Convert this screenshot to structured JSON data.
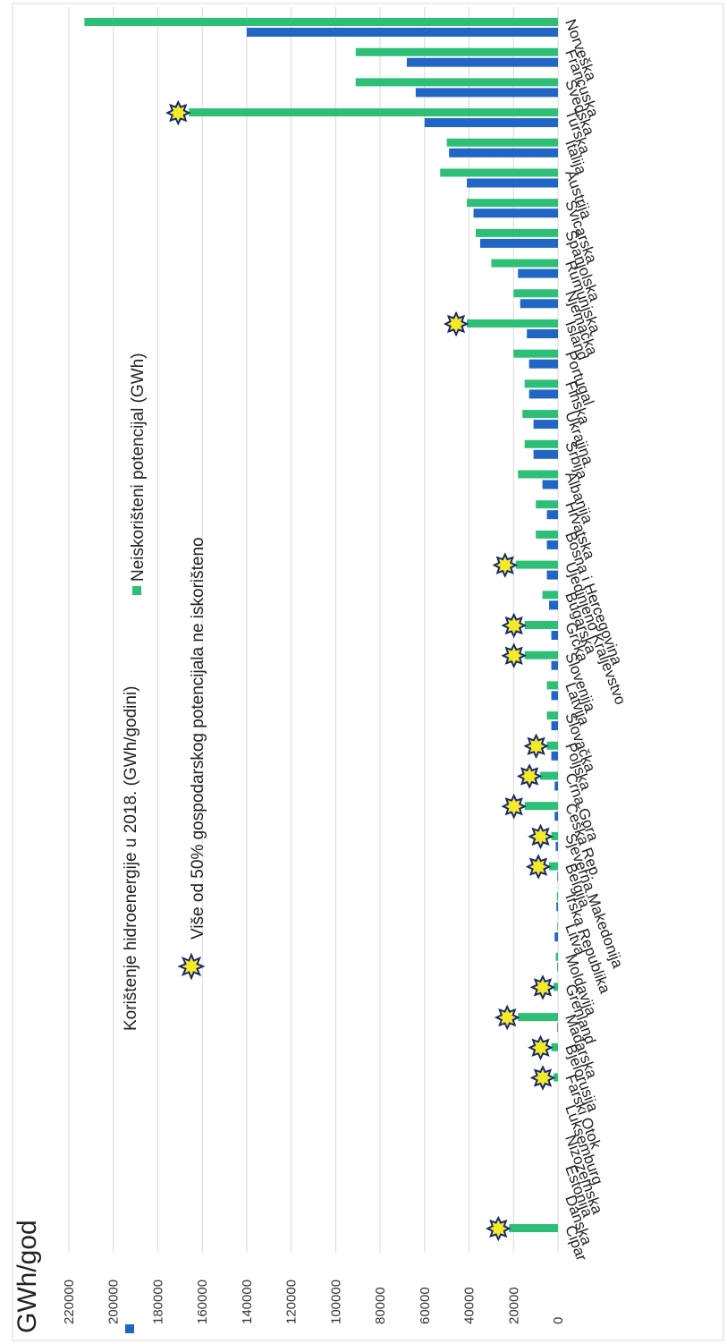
{
  "chart_data": {
    "type": "bar",
    "orientation": "rotated-90",
    "unit_label": "GWh/god",
    "ylim": [
      0,
      220000
    ],
    "yticks": [
      "0",
      "20000",
      "40000",
      "60000",
      "80000",
      "100000",
      "120000",
      "140000",
      "160000",
      "180000",
      "200000",
      "220000"
    ],
    "grid": true,
    "legend_position": "top",
    "categories": [
      "Norveška",
      "Francuska",
      "Švedska",
      "Turska",
      "Italija",
      "Austrija",
      "Švicarska",
      "Španjolska",
      "Rumunjska",
      "Njemačka",
      "Island",
      "Portugal",
      "Finska",
      "Ukrajina",
      "Srbija",
      "Albanija",
      "Hrvatska",
      "Bosna i Hercegovina",
      "Ujedinjeno Kraljevstvo",
      "Bugarska",
      "Grčka",
      "Slovenija",
      "Latvija",
      "Slovačka",
      "Poljska",
      "Crna Gora",
      "Češka Rep.",
      "Sjeverna Makedonija",
      "Belgija",
      "Irska Republika",
      "Litva",
      "Moldavija",
      "Grenland",
      "Mađarska",
      "Bjelorusija",
      "Farski Otok",
      "Luksemburg",
      "Nizozemska",
      "Estonija",
      "Danska",
      "Cipar"
    ],
    "series": [
      {
        "name": "Korištenje hidroenergije u 2018. (GWh/godini)",
        "color": "#2166c4",
        "values": [
          140000,
          68000,
          64000,
          60000,
          49000,
          41000,
          38000,
          35000,
          18000,
          17000,
          14000,
          13000,
          13000,
          11000,
          11000,
          7000,
          5000,
          5000,
          5000,
          4000,
          3000,
          3000,
          3000,
          3000,
          3000,
          1500,
          1500,
          1000,
          300,
          700,
          1500,
          300,
          0,
          300,
          0,
          0,
          0,
          0,
          0,
          0,
          0
        ]
      },
      {
        "name": "Neiskorišteni potencijal (GWh)",
        "color": "#2dbf76",
        "values": [
          213000,
          91000,
          91000,
          166000,
          50000,
          53000,
          41000,
          37000,
          30000,
          20000,
          41000,
          20000,
          15000,
          16000,
          15000,
          18000,
          10000,
          10000,
          19000,
          7000,
          15000,
          15000,
          5000,
          5000,
          5000,
          8000,
          15000,
          3000,
          4000,
          500,
          300,
          1000,
          2000,
          18000,
          3000,
          2000,
          0,
          0,
          0,
          0,
          22000
        ]
      }
    ],
    "over_50_percent_unexploited": [
      "Turska",
      "Island",
      "Ujedinjeno Kraljevstvo",
      "Grčka",
      "Slovenija",
      "Poljska",
      "Crna Gora",
      "Češka Rep.",
      "Sjeverna Makedonija",
      "Belgija",
      "Grenland",
      "Mađarska",
      "Bjelorusija",
      "Farski Otok",
      "Cipar"
    ],
    "marker_legend": "Više od 50% gospodarskog potencijala ne iskorišteno"
  }
}
